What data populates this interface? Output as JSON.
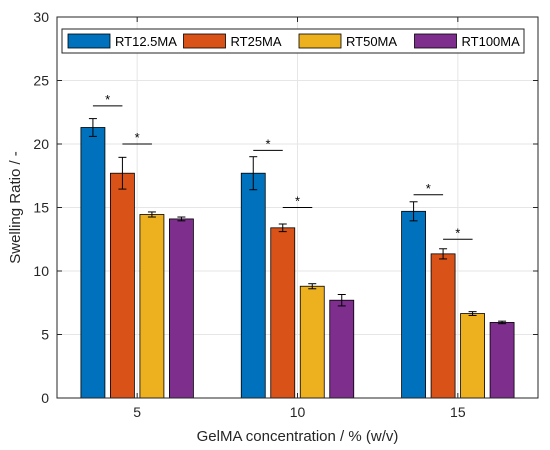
{
  "chart_data": {
    "type": "bar",
    "title": "",
    "xlabel": "GelMA concentration / % (w/v)",
    "ylabel": "Swelling Ratio / -",
    "categories": [
      "5",
      "10",
      "15"
    ],
    "ylim": [
      0,
      30
    ],
    "yticks": [
      0,
      5,
      10,
      15,
      20,
      25,
      30
    ],
    "grid": true,
    "legend_position": "top",
    "series": [
      {
        "name": "RT12.5MA",
        "color": "#0072BD",
        "values": [
          21.3,
          17.7,
          14.7
        ],
        "errors": [
          0.7,
          1.3,
          0.75
        ]
      },
      {
        "name": "RT25MA",
        "color": "#D95319",
        "values": [
          17.7,
          13.4,
          11.35
        ],
        "errors": [
          1.25,
          0.3,
          0.4
        ]
      },
      {
        "name": "RT50MA",
        "color": "#EDB120",
        "values": [
          14.45,
          8.8,
          6.65
        ],
        "errors": [
          0.2,
          0.2,
          0.15
        ]
      },
      {
        "name": "RT100MA",
        "color": "#7E2F8E",
        "values": [
          14.1,
          7.7,
          5.95
        ],
        "errors": [
          0.15,
          0.45,
          0.1
        ]
      }
    ],
    "significance": [
      {
        "category": "5",
        "from_series": 0,
        "to_series": 1,
        "y": 23.0,
        "label": "*"
      },
      {
        "category": "5",
        "from_series": 1,
        "to_series": 2,
        "y": 20.0,
        "label": "*"
      },
      {
        "category": "10",
        "from_series": 0,
        "to_series": 1,
        "y": 19.5,
        "label": "*"
      },
      {
        "category": "10",
        "from_series": 1,
        "to_series": 2,
        "y": 15.0,
        "label": "*"
      },
      {
        "category": "15",
        "from_series": 0,
        "to_series": 1,
        "y": 16.0,
        "label": "*"
      },
      {
        "category": "15",
        "from_series": 1,
        "to_series": 2,
        "y": 12.5,
        "label": "*"
      }
    ]
  }
}
